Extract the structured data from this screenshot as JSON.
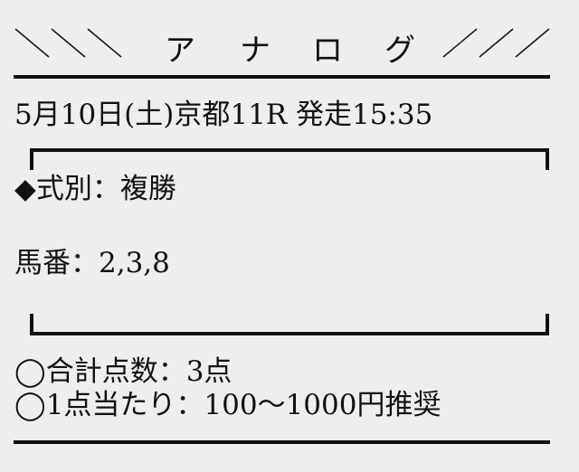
{
  "header": {
    "title_chars": [
      "ア",
      "ナ",
      "ロ",
      "グ"
    ]
  },
  "race_info": "5月10日(土)京都11R 発走15:35",
  "bet_type": "◆式別：複勝",
  "horse_numbers": "馬番：2,3,8",
  "total_points": "◯合計点数：3点",
  "per_point": "◯1点当たり：100〜1000円推奨"
}
